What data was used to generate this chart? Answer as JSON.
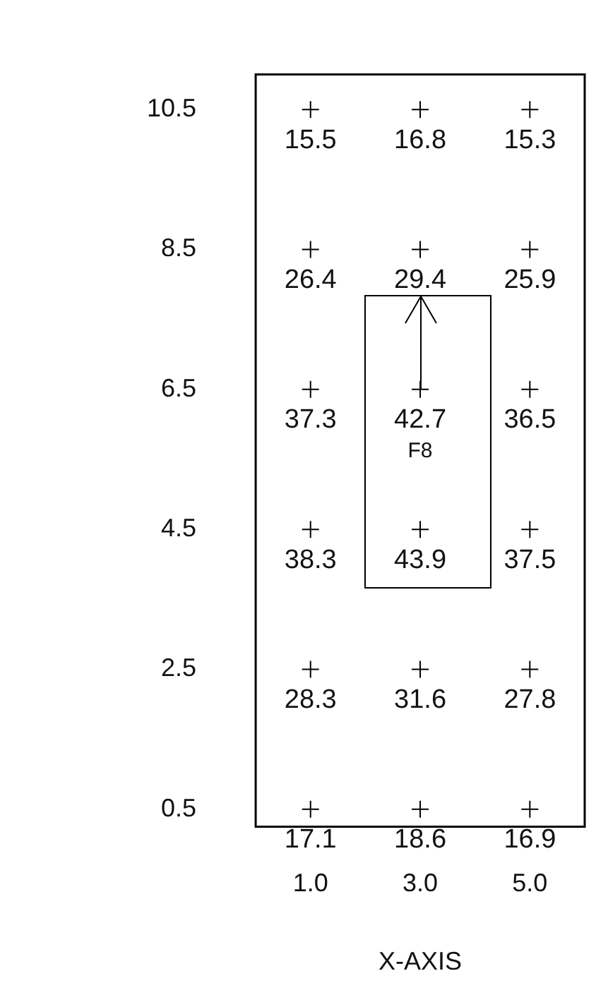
{
  "chart_data": {
    "type": "scatter",
    "marker": "cross",
    "color": "#000000",
    "x": [
      1,
      3,
      5,
      1,
      3,
      5,
      1,
      3,
      5,
      1,
      3,
      5,
      1,
      3,
      5,
      1,
      3,
      5
    ],
    "values": [
      10.5,
      10.5,
      10.5,
      8.5,
      8.5,
      8.5,
      6.5,
      6.5,
      6.5,
      4.5,
      4.5,
      4.5,
      2.5,
      2.5,
      2.5,
      0.5,
      0.5,
      0.5
    ],
    "xlim": [
      0,
      6
    ],
    "xticks": [
      {
        "value": 1,
        "label": "1.0"
      },
      {
        "value": 3,
        "label": "3.0"
      },
      {
        "value": 5,
        "label": "5.0"
      }
    ],
    "ylim": [
      0.25,
      11
    ],
    "yticks": [
      0.5,
      2.5,
      4.5,
      6.5,
      8.5,
      10.5
    ],
    "xlabel": "X-AXIS",
    "annotations": [
      {
        "text": "15.5",
        "x": 1,
        "y": 10.5
      },
      {
        "text": "16.8",
        "x": 3,
        "y": 10.5
      },
      {
        "text": "15.3",
        "x": 5,
        "y": 10.5
      },
      {
        "text": "26.4",
        "x": 1,
        "y": 8.5
      },
      {
        "text": "29.4",
        "x": 3,
        "y": 8.5
      },
      {
        "text": "25.9",
        "x": 5,
        "y": 8.5
      },
      {
        "text": "37.3",
        "x": 1,
        "y": 6.5
      },
      {
        "text": "42.7",
        "x": 3,
        "y": 6.5
      },
      {
        "text": "36.5",
        "x": 5,
        "y": 6.5
      },
      {
        "text": "38.3",
        "x": 1,
        "y": 4.5
      },
      {
        "text": "43.9",
        "x": 3,
        "y": 4.5
      },
      {
        "text": "37.5",
        "x": 5,
        "y": 4.5
      },
      {
        "text": "28.3",
        "x": 1,
        "y": 2.5
      },
      {
        "text": "31.6",
        "x": 3,
        "y": 2.5
      },
      {
        "text": "27.8",
        "x": 5,
        "y": 2.5
      },
      {
        "text": "17.1",
        "x": 1,
        "y": 0.5
      },
      {
        "text": "18.6",
        "x": 3,
        "y": 0.5
      },
      {
        "text": "16.9",
        "x": 5,
        "y": 0.5
      },
      {
        "text": "F8",
        "x": 3,
        "y": 6.5
      }
    ]
  }
}
